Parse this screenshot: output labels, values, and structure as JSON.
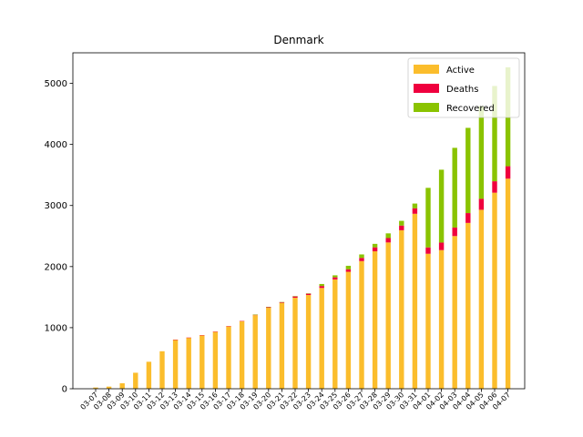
{
  "chart_data": {
    "type": "bar",
    "stacked": true,
    "title": "Denmark",
    "xlabel": "",
    "ylabel": "",
    "ylim": [
      0,
      5500
    ],
    "yticks": [
      0,
      1000,
      2000,
      3000,
      4000,
      5000
    ],
    "grid": false,
    "legend_position": "top-right",
    "categories": [
      "03-07",
      "03-08",
      "03-09",
      "03-10",
      "03-11",
      "03-12",
      "03-13",
      "03-14",
      "03-15",
      "03-16",
      "03-17",
      "03-18",
      "03-19",
      "03-20",
      "03-21",
      "03-22",
      "03-23",
      "03-24",
      "03-25",
      "03-26",
      "03-27",
      "03-28",
      "03-29",
      "03-30",
      "03-31",
      "04-01",
      "04-02",
      "04-03",
      "04-04",
      "04-05",
      "04-06",
      "04-07"
    ],
    "series": [
      {
        "name": "Active",
        "color": "#fbbd2c",
        "values": [
          20,
          35,
          90,
          262,
          442,
          614,
          804,
          836,
          875,
          933,
          1022,
          1105,
          1205,
          1325,
          1405,
          1490,
          1535,
          1650,
          1790,
          1915,
          2090,
          2250,
          2395,
          2595,
          2865,
          2210,
          2270,
          2500,
          2715,
          2930,
          3210,
          3440
        ]
      },
      {
        "name": "Deaths",
        "color": "#ef003e",
        "values": [
          0,
          0,
          0,
          0,
          0,
          0,
          1,
          2,
          2,
          3,
          4,
          6,
          9,
          13,
          13,
          24,
          24,
          32,
          34,
          41,
          52,
          65,
          72,
          77,
          90,
          104,
          123,
          139,
          161,
          179,
          187,
          203
        ]
      },
      {
        "name": "Recovered",
        "color": "#8ac300",
        "values": [
          0,
          0,
          0,
          0,
          0,
          0,
          0,
          0,
          0,
          0,
          0,
          0,
          1,
          1,
          1,
          1,
          1,
          33,
          33,
          57,
          57,
          57,
          77,
          77,
          77,
          975,
          1193,
          1305,
          1395,
          1520,
          1560,
          1620
        ]
      }
    ]
  }
}
